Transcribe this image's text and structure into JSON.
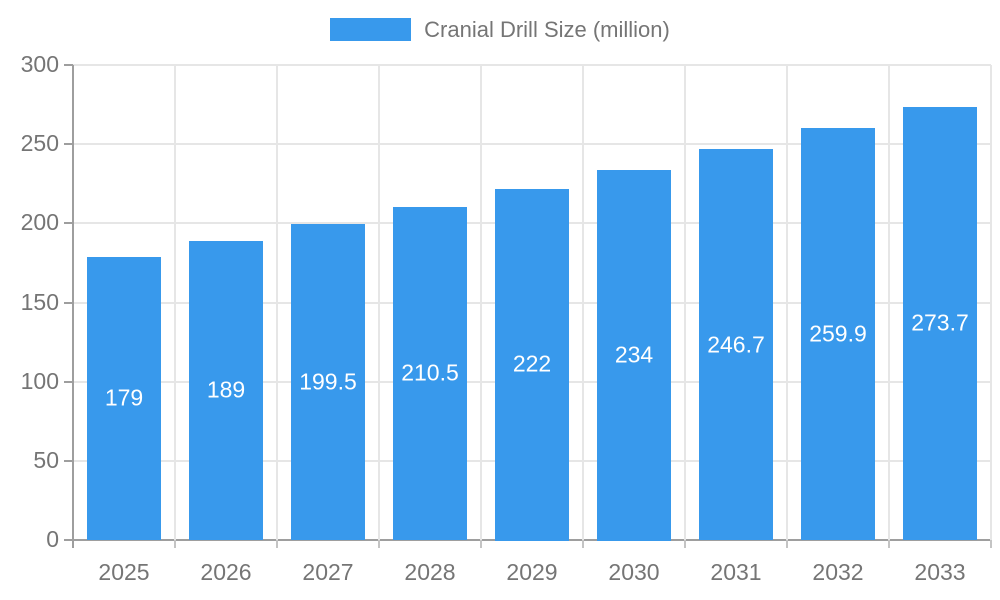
{
  "chart_data": {
    "type": "bar",
    "title": "Cranial Drill Size (million)",
    "categories": [
      "2025",
      "2026",
      "2027",
      "2028",
      "2029",
      "2030",
      "2031",
      "2032",
      "2033"
    ],
    "values": [
      179,
      189,
      199.5,
      210.5,
      222,
      234,
      246.7,
      259.9,
      273.7
    ],
    "value_labels": [
      "179",
      "189",
      "199.5",
      "210.5",
      "222",
      "234",
      "246.7",
      "259.9",
      "273.7"
    ],
    "xlabel": "",
    "ylabel": "",
    "ylim": [
      0,
      300
    ],
    "ytick_step": 50,
    "ytick_labels": [
      "0",
      "50",
      "100",
      "150",
      "200",
      "250",
      "300"
    ],
    "grid": true,
    "legend_position": "top",
    "colors": {
      "bar": "#3899EC",
      "grid": "#e6e6e6",
      "axis_line": "#9e9e9e",
      "minor_tick": "#c4c4c4",
      "tick_text": "#757575",
      "value_text": "#ffffff",
      "background": "#ffffff"
    }
  }
}
